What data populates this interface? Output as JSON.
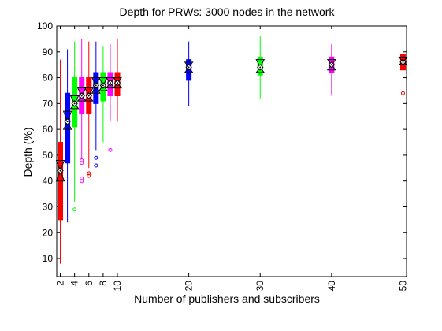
{
  "chart_data": {
    "type": "boxplot",
    "title": "Depth for PRWs: 3000 nodes in the network",
    "xlabel": "Number of publishers and subscribers",
    "ylabel": "Depth (%)",
    "ylim": [
      3,
      100
    ],
    "xlim": [
      1.5,
      50.5
    ],
    "yticks": [
      10,
      20,
      30,
      40,
      50,
      60,
      70,
      80,
      90,
      100
    ],
    "xticks": [
      2,
      4,
      6,
      8,
      10,
      20,
      30,
      40,
      50
    ],
    "grid": false,
    "colors": {
      "red": "#ff0000",
      "blue": "#0000ff",
      "green": "#00ff00",
      "magenta": "#ff00ff",
      "mean_marker": "#000000"
    },
    "boxes": [
      {
        "x": 2,
        "color": "red",
        "min": 8,
        "q1": 25,
        "median": 44,
        "q3": 55,
        "max": 87,
        "mean": 44,
        "notch_low": 40,
        "notch_high": 48,
        "outliers": []
      },
      {
        "x": 3,
        "color": "blue",
        "min": 24,
        "q1": 47,
        "median": 63,
        "q3": 74,
        "max": 91,
        "mean": 63,
        "notch_low": 60,
        "notch_high": 67,
        "outliers": []
      },
      {
        "x": 4,
        "color": "green",
        "min": 32,
        "q1": 61,
        "median": 70,
        "q3": 80,
        "max": 94,
        "mean": 70,
        "notch_low": 68,
        "notch_high": 73,
        "outliers": [
          29
        ]
      },
      {
        "x": 5,
        "color": "magenta",
        "min": 49,
        "q1": 66,
        "median": 73,
        "q3": 80,
        "max": 95,
        "mean": 73,
        "notch_low": 71,
        "notch_high": 76,
        "outliers": [
          40,
          41,
          47,
          48
        ]
      },
      {
        "x": 6,
        "color": "red",
        "min": 45,
        "q1": 66,
        "median": 73,
        "q3": 80,
        "max": 94,
        "mean": 73,
        "notch_low": 71,
        "notch_high": 76,
        "outliers": [
          42,
          43
        ]
      },
      {
        "x": 7,
        "color": "blue",
        "min": 52,
        "q1": 70,
        "median": 77,
        "q3": 82,
        "max": 94,
        "mean": 77,
        "notch_low": 74,
        "notch_high": 80,
        "outliers": [
          46,
          49
        ]
      },
      {
        "x": 8,
        "color": "green",
        "min": 55,
        "q1": 71,
        "median": 77,
        "q3": 82,
        "max": 92,
        "mean": 77,
        "notch_low": 75,
        "notch_high": 80,
        "outliers": []
      },
      {
        "x": 9,
        "color": "magenta",
        "min": 63,
        "q1": 73,
        "median": 78,
        "q3": 82,
        "max": 93,
        "mean": 78,
        "notch_low": 76,
        "notch_high": 80,
        "outliers": [
          52
        ]
      },
      {
        "x": 10,
        "color": "red",
        "min": 63,
        "q1": 73,
        "median": 78,
        "q3": 82,
        "max": 95,
        "mean": 78,
        "notch_low": 76,
        "notch_high": 80,
        "outliers": []
      },
      {
        "x": 20,
        "color": "blue",
        "min": 69,
        "q1": 79,
        "median": 84,
        "q3": 87,
        "max": 94,
        "mean": 84,
        "notch_low": 82,
        "notch_high": 86,
        "outliers": []
      },
      {
        "x": 30,
        "color": "green",
        "min": 72,
        "q1": 81,
        "median": 84,
        "q3": 88,
        "max": 96,
        "mean": 84,
        "notch_low": 82,
        "notch_high": 87,
        "outliers": []
      },
      {
        "x": 40,
        "color": "magenta",
        "min": 73,
        "q1": 82,
        "median": 85,
        "q3": 88,
        "max": 93,
        "mean": 85,
        "notch_low": 83,
        "notch_high": 87,
        "outliers": []
      },
      {
        "x": 50,
        "color": "red",
        "min": 78,
        "q1": 83,
        "median": 86,
        "q3": 89,
        "max": 94,
        "mean": 86,
        "notch_low": 85,
        "notch_high": 88,
        "outliers": [
          74
        ]
      }
    ]
  }
}
